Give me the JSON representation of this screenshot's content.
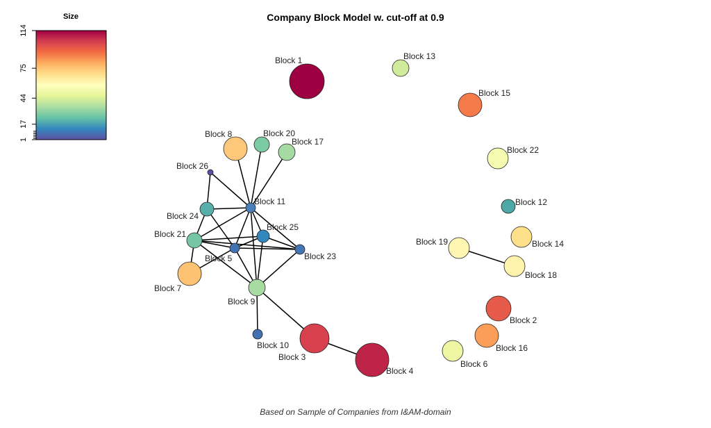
{
  "title": "Company Block Model w. cut-off at  0.9",
  "footer": "Based on Sample of Companies from I&AM-domain",
  "legend": {
    "title": "Size",
    "ticks": [
      "1",
      "17",
      "44",
      "75",
      "114"
    ]
  },
  "nodes": [
    {
      "id": "b1",
      "label": "Block 1",
      "color": "#9E0142"
    },
    {
      "id": "b2",
      "label": "Block 2",
      "color": "#E55A48"
    },
    {
      "id": "b3",
      "label": "Block 3",
      "color": "#D7414E"
    },
    {
      "id": "b4",
      "label": "Block 4",
      "color": "#BE2348"
    },
    {
      "id": "b5",
      "label": "Block 5",
      "color": "#4173B3"
    },
    {
      "id": "b6",
      "label": "Block 6",
      "color": "#EEF6A3"
    },
    {
      "id": "b7",
      "label": "Block 7",
      "color": "#FDC373"
    },
    {
      "id": "b8",
      "label": "Block 8",
      "color": "#FDC879"
    },
    {
      "id": "b9",
      "label": "Block 9",
      "color": "#A8DBA2"
    },
    {
      "id": "b10",
      "label": "Block 10",
      "color": "#4470B3"
    },
    {
      "id": "b11",
      "label": "Block 11",
      "color": "#4A80BA"
    },
    {
      "id": "b12",
      "label": "Block 12",
      "color": "#4FA8A8"
    },
    {
      "id": "b13",
      "label": "Block 13",
      "color": "#CFEB9B"
    },
    {
      "id": "b14",
      "label": "Block 14",
      "color": "#FEE08B"
    },
    {
      "id": "b15",
      "label": "Block 15",
      "color": "#F57A4A"
    },
    {
      "id": "b16",
      "label": "Block 16",
      "color": "#FB9E5A"
    },
    {
      "id": "b17",
      "label": "Block 17",
      "color": "#A5DBA3"
    },
    {
      "id": "b18",
      "label": "Block 18",
      "color": "#FFF4AE"
    },
    {
      "id": "b19",
      "label": "Block 19",
      "color": "#FFF6B4"
    },
    {
      "id": "b20",
      "label": "Block 20",
      "color": "#7DCBA4"
    },
    {
      "id": "b21",
      "label": "Block 21",
      "color": "#74C6A5"
    },
    {
      "id": "b22",
      "label": "Block 22",
      "color": "#F6FAB0"
    },
    {
      "id": "b23",
      "label": "Block 23",
      "color": "#4476B6"
    },
    {
      "id": "b24",
      "label": "Block 24",
      "color": "#56AFA8"
    },
    {
      "id": "b25",
      "label": "Block 25",
      "color": "#3288BD"
    },
    {
      "id": "b26",
      "label": "Block 26",
      "color": "#5E4FA2"
    }
  ],
  "edges": [
    [
      "b26",
      "b11"
    ],
    [
      "b26",
      "b24"
    ],
    [
      "b8",
      "b11"
    ],
    [
      "b20",
      "b11"
    ],
    [
      "b17",
      "b11"
    ],
    [
      "b24",
      "b11"
    ],
    [
      "b24",
      "b5"
    ],
    [
      "b24",
      "b21"
    ],
    [
      "b11",
      "b21"
    ],
    [
      "b11",
      "b5"
    ],
    [
      "b11",
      "b25"
    ],
    [
      "b11",
      "b23"
    ],
    [
      "b11",
      "b9"
    ],
    [
      "b21",
      "b5"
    ],
    [
      "b21",
      "b23"
    ],
    [
      "b21",
      "b9"
    ],
    [
      "b21",
      "b7"
    ],
    [
      "b21",
      "b25"
    ],
    [
      "b25",
      "b5"
    ],
    [
      "b25",
      "b23"
    ],
    [
      "b25",
      "b9"
    ],
    [
      "b5",
      "b23"
    ],
    [
      "b5",
      "b9"
    ],
    [
      "b5",
      "b7"
    ],
    [
      "b23",
      "b9"
    ],
    [
      "b9",
      "b10"
    ],
    [
      "b9",
      "b3"
    ],
    [
      "b3",
      "b4"
    ],
    [
      "b19",
      "b18"
    ]
  ]
}
